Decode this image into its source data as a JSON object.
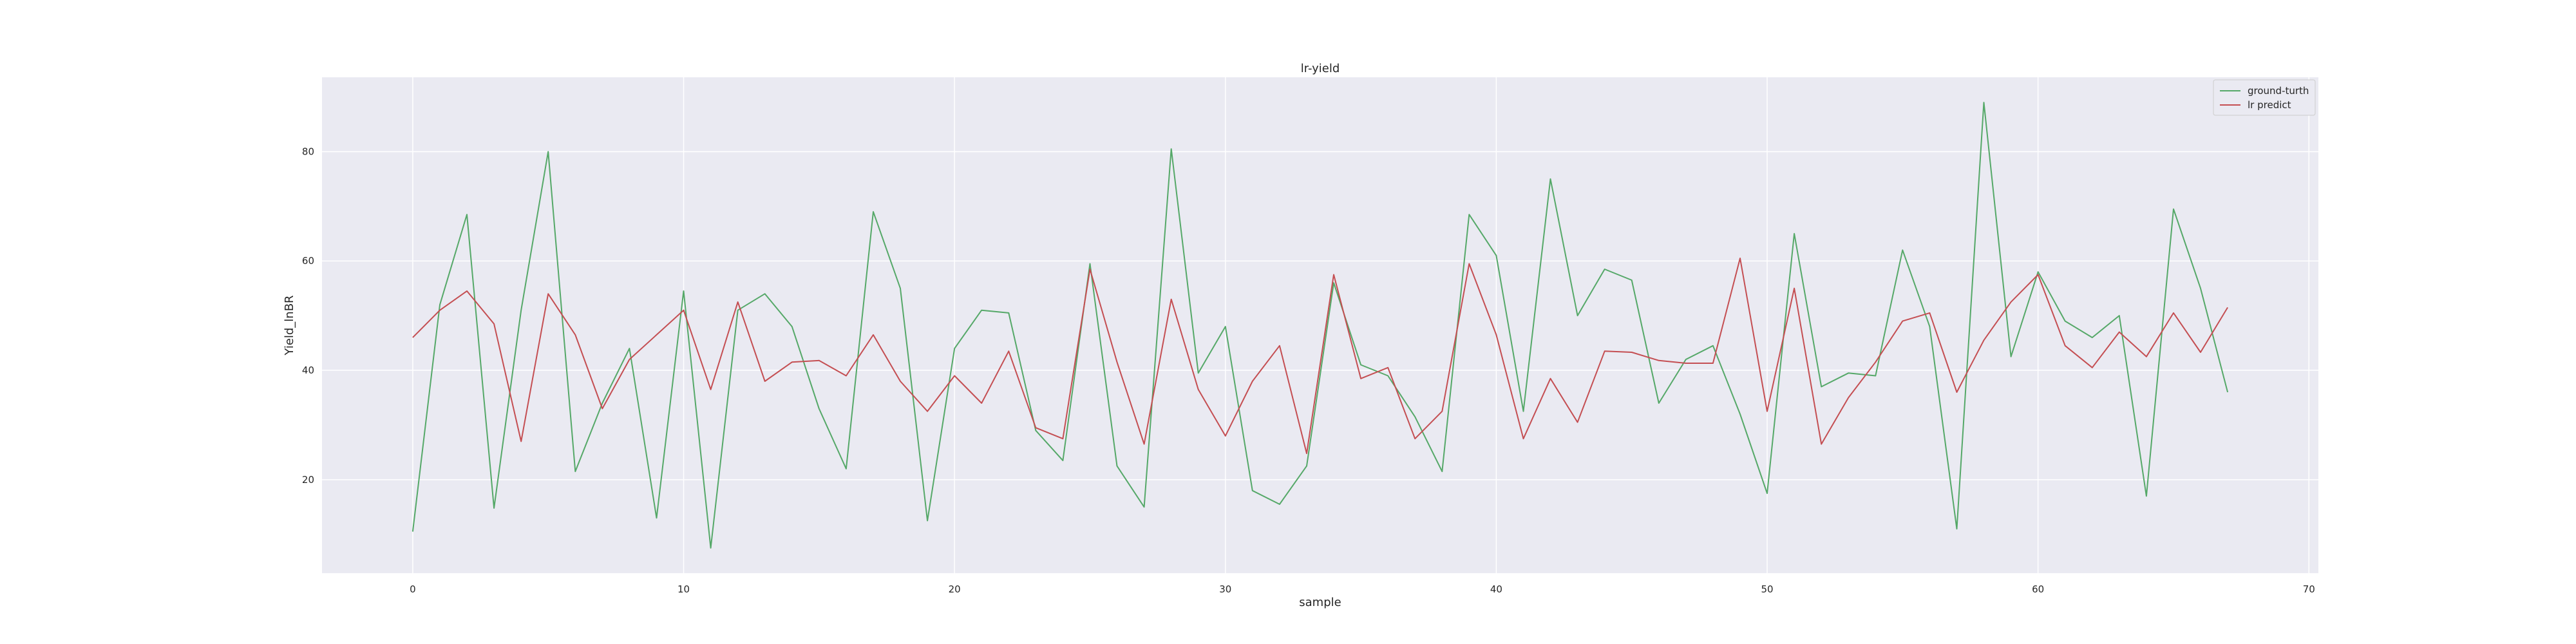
{
  "chart_data": {
    "type": "line",
    "title": "lr-yield",
    "xlabel": "sample",
    "ylabel": "Yield_lnBR",
    "xlim": [
      -3.35,
      70.35
    ],
    "ylim": [
      2.9,
      93.6
    ],
    "xticks": [
      0,
      10,
      20,
      30,
      40,
      50,
      60,
      70
    ],
    "yticks": [
      20,
      40,
      60,
      80
    ],
    "grid": true,
    "legend_position": "top-right",
    "x": [
      0,
      1,
      2,
      3,
      4,
      5,
      6,
      7,
      8,
      9,
      10,
      11,
      12,
      13,
      14,
      15,
      16,
      17,
      18,
      19,
      20,
      21,
      22,
      23,
      24,
      25,
      26,
      27,
      28,
      29,
      30,
      31,
      32,
      33,
      34,
      35,
      36,
      37,
      38,
      39,
      40,
      41,
      42,
      43,
      44,
      45,
      46,
      47,
      48,
      49,
      50,
      51,
      52,
      53,
      54,
      55,
      56,
      57,
      58,
      59,
      60,
      61,
      62,
      63,
      64,
      65,
      66,
      67
    ],
    "series": [
      {
        "name": "ground-turth",
        "color": "#55a868",
        "values": [
          10.5,
          52,
          68.5,
          14.8,
          51,
          80,
          21.5,
          34,
          44,
          13,
          54.5,
          7.5,
          51,
          54,
          48,
          33,
          22,
          69,
          55,
          12.5,
          44,
          51,
          50.5,
          29,
          23.5,
          59.5,
          22.5,
          15,
          80.5,
          39.5,
          48,
          18,
          15.5,
          22.5,
          56,
          41,
          39,
          31.5,
          21.5,
          68.5,
          61,
          32.5,
          75,
          50,
          58.5,
          56.5,
          34,
          42,
          44.5,
          32,
          17.5,
          65,
          37,
          39.5,
          39,
          62,
          48,
          11,
          89,
          42.5,
          58,
          49,
          46,
          50,
          17,
          69.5,
          55,
          36
        ]
      },
      {
        "name": "lr predict",
        "color": "#c44e52",
        "values": [
          46,
          51,
          54.5,
          48.5,
          27,
          54,
          46.5,
          33,
          42,
          46.5,
          51,
          36.5,
          52.5,
          38,
          41.5,
          41.8,
          39,
          46.5,
          38,
          32.5,
          39,
          34,
          43.5,
          29.5,
          27.5,
          58.5,
          41.5,
          26.5,
          53,
          36.5,
          28,
          38,
          44.5,
          24.8,
          57.5,
          38.5,
          40.5,
          27.5,
          32.5,
          59.5,
          46.5,
          27.5,
          38.5,
          30.5,
          43.5,
          43.3,
          41.8,
          41.3,
          41.3,
          60.5,
          32.5,
          55,
          26.5,
          35,
          41.5,
          49,
          50.5,
          36,
          45.5,
          52.5,
          57.5,
          44.5,
          40.5,
          47,
          42.5,
          50.5,
          43.3,
          51.5
        ]
      }
    ]
  }
}
